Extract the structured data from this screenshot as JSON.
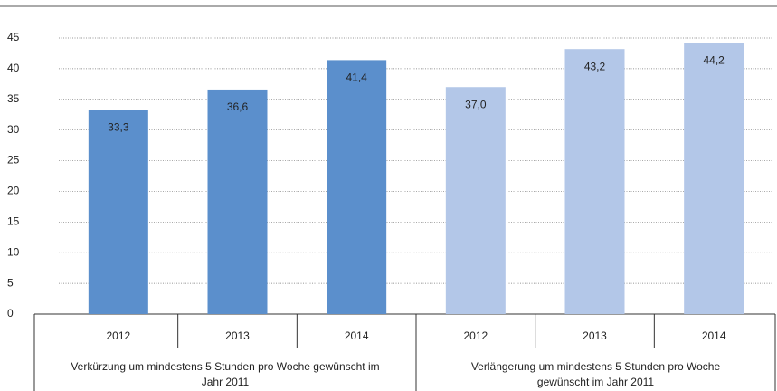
{
  "chart_data": {
    "type": "bar",
    "ylim": [
      0,
      45
    ],
    "yticks": [
      0,
      5,
      10,
      15,
      20,
      25,
      30,
      35,
      40,
      45
    ],
    "grid": true,
    "groups": [
      {
        "name": "Verkürzung um mindestens 5 Stunden pro Woche gewünscht im Jahr 2011",
        "color": "#5b8fcc",
        "categories": [
          "2012",
          "2013",
          "2014"
        ],
        "values": [
          33.3,
          36.6,
          41.4
        ],
        "value_labels": [
          "33,3",
          "36,6",
          "41,4"
        ]
      },
      {
        "name": "Verlängerung um mindestens 5 Stunden pro Woche gewünscht im Jahr 2011",
        "color": "#b3c7e8",
        "categories": [
          "2012",
          "2013",
          "2014"
        ],
        "values": [
          37.0,
          43.2,
          44.2
        ],
        "value_labels": [
          "37,0",
          "43,2",
          "44,2"
        ]
      }
    ]
  }
}
